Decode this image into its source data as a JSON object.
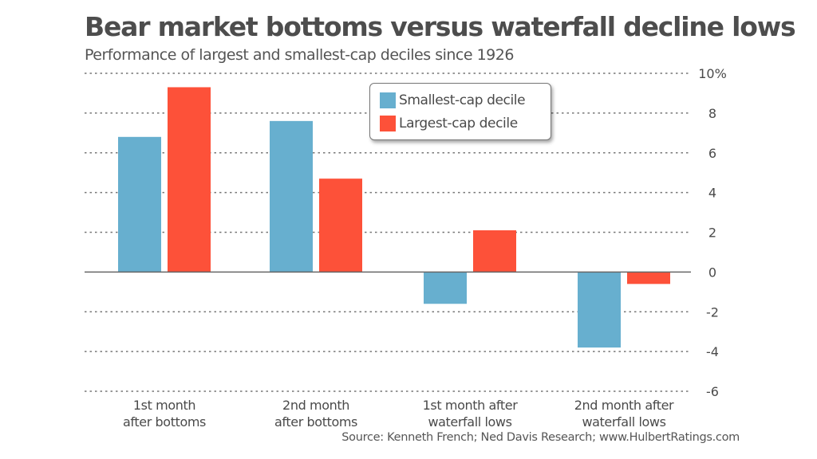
{
  "chart_data": {
    "type": "bar",
    "title": "Bear market bottoms versus waterfall decline lows",
    "subtitle": "Performance of largest and smallest-cap deciles since 1926",
    "xlabel": "",
    "ylabel": "",
    "categories": [
      [
        "1st month",
        "after bottoms"
      ],
      [
        "2nd month",
        "after bottoms"
      ],
      [
        "1st month after",
        "waterfall lows"
      ],
      [
        "2nd month after",
        "waterfall lows"
      ]
    ],
    "series": [
      {
        "name": "Smallest-cap decile",
        "color": "#67afcf",
        "values": [
          6.8,
          7.6,
          -1.6,
          -3.8
        ]
      },
      {
        "name": "Largest-cap decile",
        "color": "#fd5139",
        "values": [
          9.3,
          4.7,
          2.1,
          -0.6
        ]
      }
    ],
    "ylim": [
      -6,
      10
    ],
    "yticks": [
      10,
      8,
      6,
      4,
      2,
      0,
      -2,
      -4,
      -6
    ],
    "ytick_labels": [
      "10%",
      "8",
      "6",
      "4",
      "2",
      "0",
      "-2",
      "-4",
      "-6"
    ],
    "y_axis_side": "right",
    "grid": true,
    "grid_style": "dotted",
    "legend_position": "top-center",
    "source": "Source: Kenneth French; Ned Davis Research; www.HulbertRatings.com"
  }
}
